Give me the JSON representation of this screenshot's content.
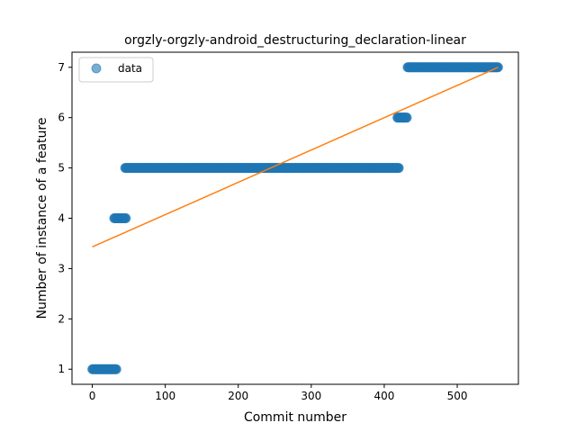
{
  "chart_data": {
    "type": "scatter",
    "title": "orgzly-orgzly-android_destructuring_declaration-linear",
    "xlabel": "Commit number",
    "ylabel": "Number of instance of a feature",
    "xlim": [
      -27.8,
      583.8
    ],
    "ylim": [
      0.7,
      7.3
    ],
    "xticks": [
      0,
      100,
      200,
      300,
      400,
      500
    ],
    "yticks": [
      1,
      2,
      3,
      4,
      5,
      6,
      7
    ],
    "grid": false,
    "legend": {
      "position": "top-left",
      "entries": [
        "data"
      ]
    },
    "colors": {
      "data": "#1f77b4",
      "fit": "#ff7f0e"
    },
    "series": [
      {
        "name": "data",
        "kind": "scatter",
        "segments": [
          {
            "x_start": 0,
            "x_end": 33,
            "y": 1
          },
          {
            "x_start": 30,
            "x_end": 46,
            "y": 4
          },
          {
            "x_start": 45,
            "x_end": 420,
            "y": 5
          },
          {
            "x_start": 418,
            "x_end": 431,
            "y": 6
          },
          {
            "x_start": 432,
            "x_end": 556,
            "y": 7
          }
        ]
      },
      {
        "kind": "line",
        "x": [
          0,
          556
        ],
        "y": [
          3.43,
          7.0
        ]
      }
    ]
  }
}
